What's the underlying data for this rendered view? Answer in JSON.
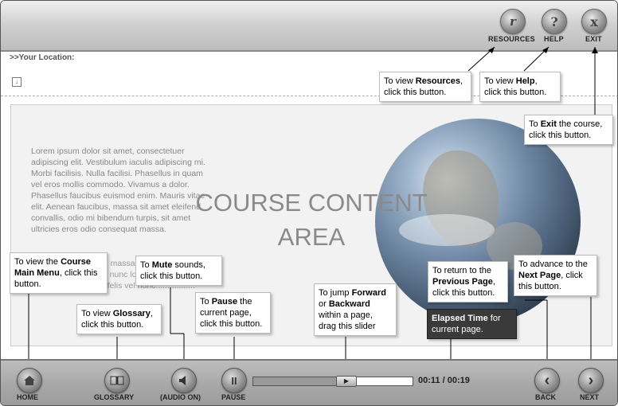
{
  "header": {
    "resources_label": "RESOURCES",
    "help_label": "HELP",
    "exit_label": "EXIT",
    "resources_icon": "resources-icon",
    "help_icon": "help-icon",
    "exit_icon": "exit-icon",
    "help_glyph": "?",
    "exit_glyph": "x",
    "resources_glyph": "r"
  },
  "location": {
    "label": ">>Your Location:",
    "download_glyph": "↓"
  },
  "content": {
    "lorem": "Lorem ipsum dolor sit amet, consectetuer adipiscing elit. Vestibulum iaculis adipiscing mi. Morbi facilisis. Nulla facilisi. Phasellus in quam vel eros mollis commodo. Vivamus a dolor. Phasellus faucibus euismod enim. Mauris vitae elit. Aenean faucibus, massa sit amet eleifend convallis, odio mi bibendum turpis, sit amet ultricies eros odio consequat massa.",
    "lorem2": "Vivamus at sapien id massa. Suspendisse volutpat, felis feugiat nunc lorem dapibus erat, eget dignissim enim felis vel nunc.................",
    "title_line1": "COURSE CONTENT",
    "title_line2": "AREA"
  },
  "callouts": {
    "resources": {
      "pre": "To view ",
      "bold": "Resources",
      "post": ", click this button."
    },
    "help": {
      "pre": "To view ",
      "bold": "Help",
      "post": ", click this button."
    },
    "exit": {
      "pre": "To ",
      "bold": "Exit",
      "post": " the course, click this button."
    },
    "home": {
      "pre": "To view the ",
      "bold": "Course Main Menu",
      "post": ", click this button."
    },
    "mute": {
      "pre": "To ",
      "bold": "Mute",
      "post": " sounds, click this button."
    },
    "glossary": {
      "pre": "To view ",
      "bold": "Glossary",
      "post": ", click this button."
    },
    "pause": {
      "pre": "To ",
      "bold": "Pause",
      "post": " the current page, click this button."
    },
    "slider": {
      "pre": "To jump ",
      "bold": "Forward",
      "mid": " or ",
      "bold2": "Backward",
      "post": " within a page, drag this slider"
    },
    "back": {
      "pre": "To return to the ",
      "bold": "Previous Page",
      "post": ", click this button."
    },
    "next": {
      "pre": "To advance to the ",
      "bold": "Next Page",
      "post": ", click this button."
    },
    "elapsed": {
      "bold": "Elapsed Time",
      "post": " for current page."
    }
  },
  "footer": {
    "home_label": "HOME",
    "glossary_label": "GLOSSARY",
    "audio_label": "(AUDIO ON)",
    "pause_label": "PAUSE",
    "back_label": "BACK",
    "next_label": "NEXT",
    "home_icon": "home-icon",
    "glossary_icon": "book-icon",
    "audio_icon": "speaker-icon",
    "pause_icon": "pause-icon",
    "back_icon": "chevron-left-icon",
    "next_icon": "chevron-right-icon",
    "pause_glyph": "II",
    "back_glyph": "‹",
    "next_glyph": "›",
    "play_glyph": "▶",
    "elapsed": "00:11",
    "separator": "/",
    "total": "00:19",
    "progress_fraction": 0.58
  }
}
